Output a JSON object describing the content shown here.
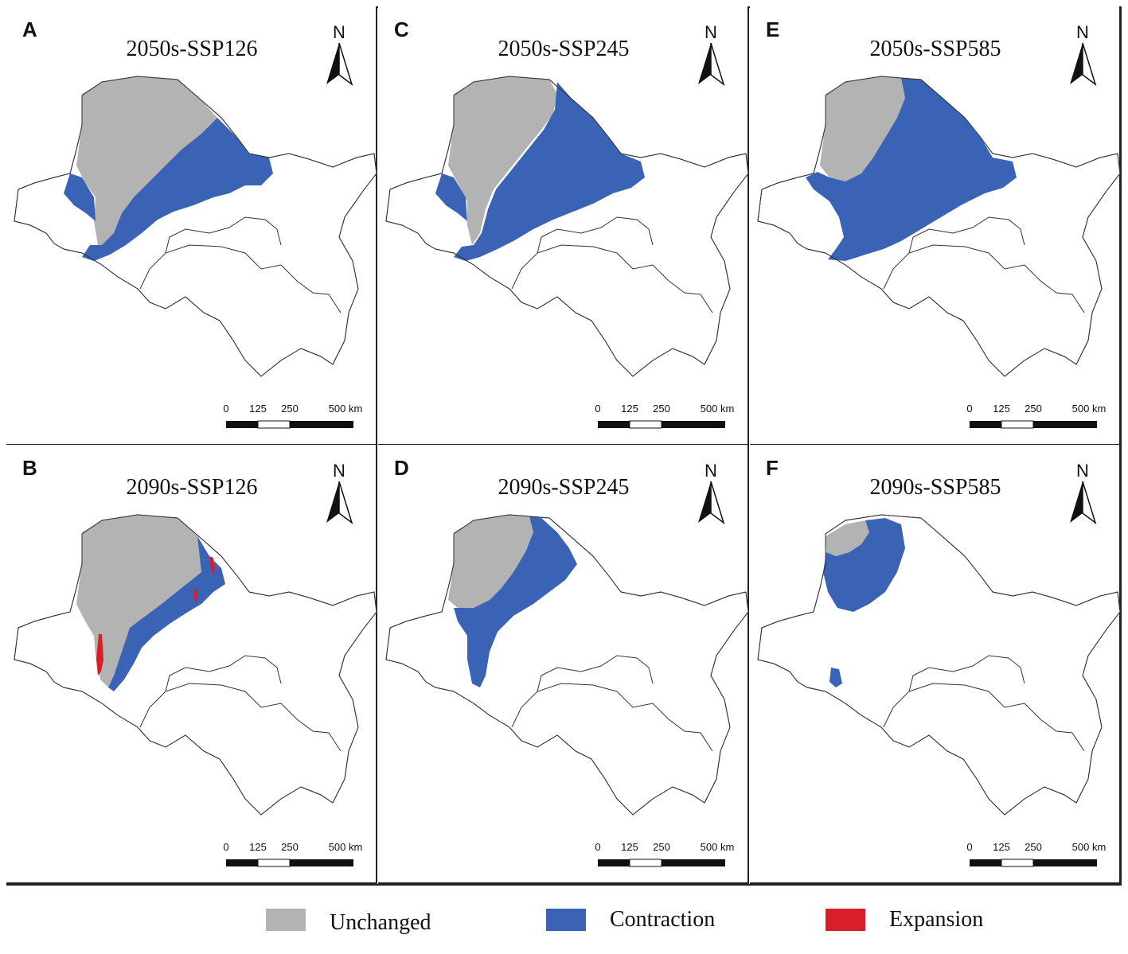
{
  "panels": [
    {
      "letter": "A",
      "title": "2050s-SSP126"
    },
    {
      "letter": "C",
      "title": "2050s-SSP245"
    },
    {
      "letter": "E",
      "title": "2050s-SSP585"
    },
    {
      "letter": "B",
      "title": "2090s-SSP126"
    },
    {
      "letter": "D",
      "title": "2090s-SSP245"
    },
    {
      "letter": "F",
      "title": "2090s-SSP585"
    }
  ],
  "north_label": "N",
  "scale": {
    "ticks": [
      "0",
      "125",
      "250",
      "500 km"
    ]
  },
  "legend": [
    {
      "label": "Unchanged",
      "color": "#b3b3b3"
    },
    {
      "label": "Contraction",
      "color": "#3a62b5"
    },
    {
      "label": "Expansion",
      "color": "#d81e28"
    }
  ],
  "colors": {
    "unchanged": "#b3b3b3",
    "contraction": "#3a62b5",
    "expansion": "#d81e28",
    "outline": "#333333"
  }
}
